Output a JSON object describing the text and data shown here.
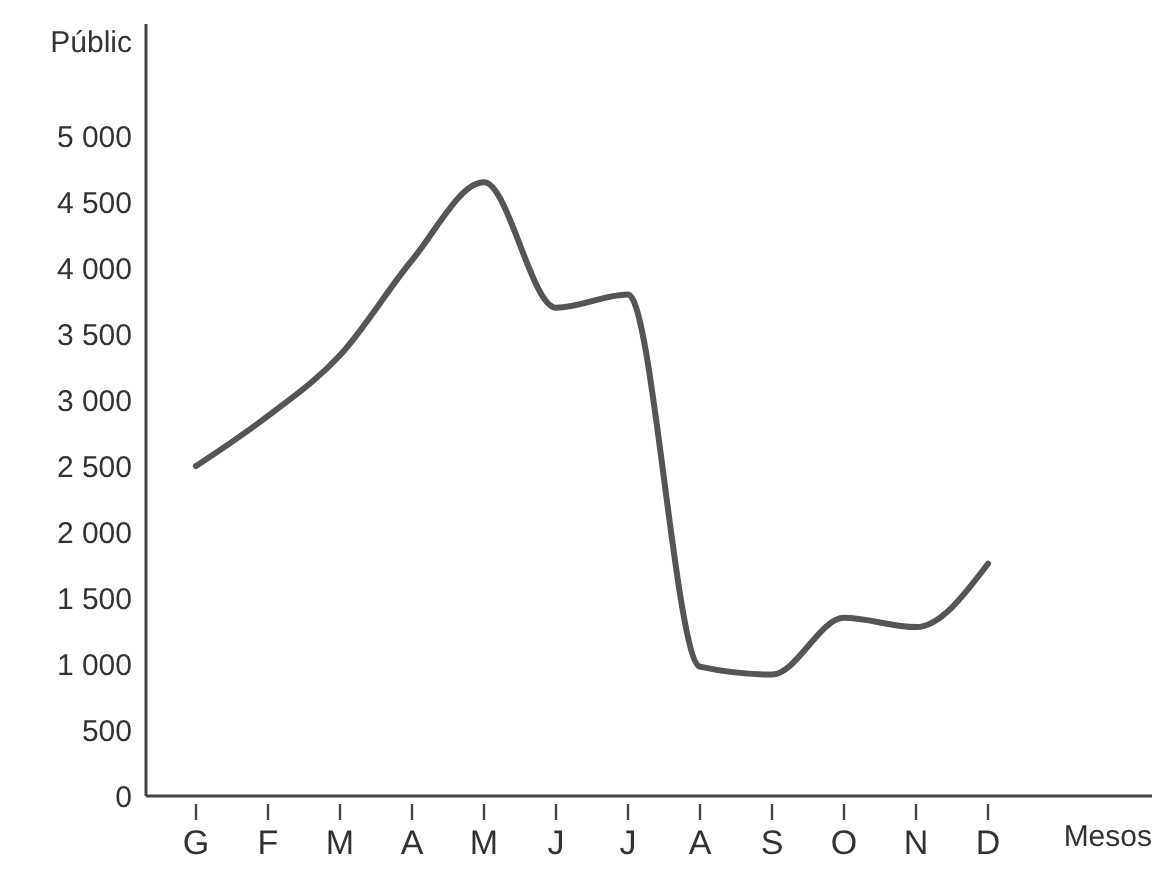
{
  "chart_data": {
    "type": "line",
    "ylabel": "Públic",
    "xlabel": "Mesos",
    "ylim": [
      0,
      5850
    ],
    "categories": [
      "G",
      "F",
      "M",
      "A",
      "M",
      "J",
      "J",
      "A",
      "S",
      "O",
      "N",
      "D"
    ],
    "yticks": [
      0,
      500,
      {
        "value": 1000,
        "label": "1 000"
      },
      {
        "value": 1500,
        "label": "1 500"
      },
      {
        "value": 2000,
        "label": "2 000"
      },
      {
        "value": 2500,
        "label": "2 500"
      },
      {
        "value": 3000,
        "label": "3 000"
      },
      {
        "value": 3500,
        "label": "3 500"
      },
      {
        "value": 4000,
        "label": "4 000"
      },
      {
        "value": 4500,
        "label": "4 500"
      },
      {
        "value": 5000,
        "label": "5 000"
      }
    ],
    "grid": false,
    "marker": "none",
    "line_style": "solid",
    "series": [
      {
        "color": "#555555",
        "values": [
          2500,
          2880,
          3340,
          4060,
          4650,
          3700,
          3800,
          980,
          920,
          1350,
          1280,
          1760
        ]
      }
    ]
  }
}
